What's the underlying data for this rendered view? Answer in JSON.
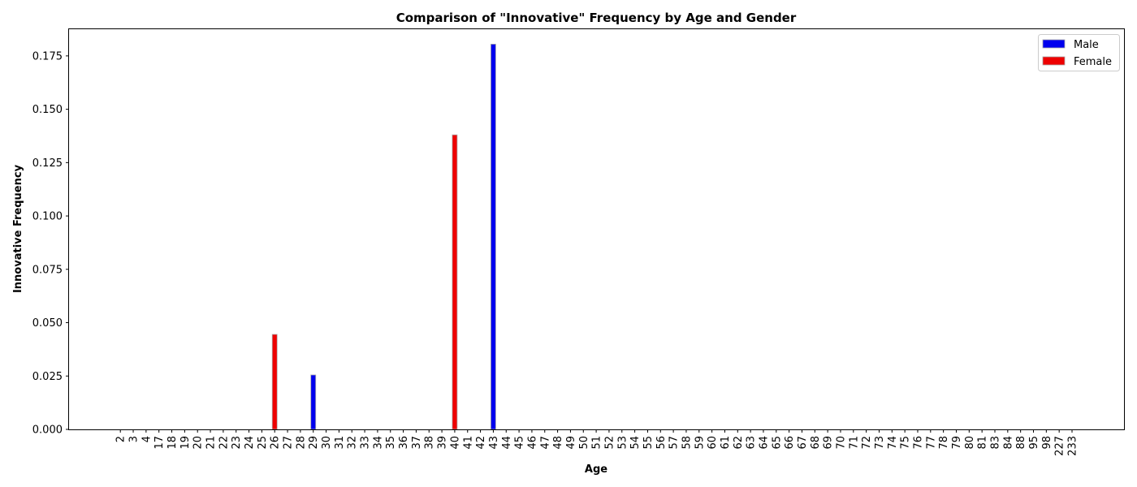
{
  "chart_data": {
    "type": "bar",
    "title": "Comparison of \"Innovative\" Frequency by Age and Gender",
    "xlabel": "Age",
    "ylabel": "Innovative Frequency",
    "ylim": [
      0,
      0.1875
    ],
    "yticks": [
      "0.000",
      "0.025",
      "0.050",
      "0.075",
      "0.100",
      "0.125",
      "0.150",
      "0.175"
    ],
    "legend_position": "top-right",
    "grid": false,
    "categories": [
      "2",
      "3",
      "4",
      "17",
      "18",
      "19",
      "20",
      "21",
      "22",
      "23",
      "24",
      "25",
      "26",
      "27",
      "28",
      "29",
      "30",
      "31",
      "32",
      "33",
      "34",
      "35",
      "36",
      "37",
      "38",
      "39",
      "40",
      "41",
      "42",
      "43",
      "44",
      "45",
      "46",
      "47",
      "48",
      "49",
      "50",
      "51",
      "52",
      "53",
      "54",
      "55",
      "56",
      "57",
      "58",
      "59",
      "60",
      "61",
      "62",
      "63",
      "64",
      "65",
      "66",
      "67",
      "68",
      "69",
      "70",
      "71",
      "72",
      "73",
      "74",
      "75",
      "76",
      "77",
      "78",
      "79",
      "80",
      "81",
      "83",
      "84",
      "88",
      "95",
      "98",
      "227",
      "233"
    ],
    "series": [
      {
        "name": "Male",
        "color": "#0000ee",
        "values": [
          0,
          0,
          0,
          0,
          0,
          0,
          0,
          0,
          0,
          0,
          0,
          0,
          0,
          0,
          0,
          0.0255,
          0,
          0,
          0,
          0,
          0,
          0,
          0,
          0,
          0,
          0,
          0,
          0,
          0,
          0.1805,
          0,
          0,
          0,
          0,
          0,
          0,
          0,
          0,
          0,
          0,
          0,
          0,
          0,
          0,
          0,
          0,
          0,
          0,
          0,
          0,
          0,
          0,
          0,
          0,
          0,
          0,
          0,
          0,
          0,
          0,
          0,
          0,
          0,
          0,
          0,
          0,
          0,
          0,
          0,
          0,
          0,
          0,
          0,
          0,
          0
        ]
      },
      {
        "name": "Female",
        "color": "#ee0000",
        "values": [
          0,
          0,
          0,
          0,
          0,
          0,
          0,
          0,
          0,
          0,
          0,
          0,
          0.0445,
          0,
          0,
          0,
          0,
          0,
          0,
          0,
          0,
          0,
          0,
          0,
          0,
          0,
          0.138,
          0,
          0,
          0,
          0,
          0,
          0,
          0,
          0,
          0,
          0,
          0,
          0,
          0,
          0,
          0,
          0,
          0,
          0,
          0,
          0,
          0,
          0,
          0,
          0,
          0,
          0,
          0,
          0,
          0,
          0,
          0,
          0,
          0,
          0,
          0,
          0,
          0,
          0,
          0,
          0,
          0,
          0,
          0,
          0,
          0,
          0,
          0,
          0
        ]
      }
    ]
  }
}
